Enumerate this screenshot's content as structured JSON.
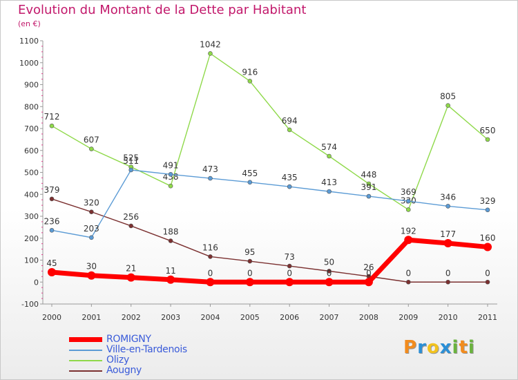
{
  "title": "Evolution du Montant de la Dette par Habitant",
  "subtitle": "(en €)",
  "chart_data": {
    "type": "line",
    "title": "Evolution du Montant de la Dette par Habitant",
    "ylabel": "(en €)",
    "xlabel": "",
    "categories": [
      "2000",
      "2001",
      "2002",
      "2003",
      "2004",
      "2005",
      "2006",
      "2007",
      "2008",
      "2009",
      "2010",
      "2011"
    ],
    "ylim": [
      -100,
      1100
    ],
    "yticks": [
      "-100",
      "0",
      "100",
      "200",
      "300",
      "400",
      "500",
      "600",
      "700",
      "800",
      "900",
      "1000",
      "1100"
    ],
    "grid": false,
    "legend_position": "bottom-left",
    "series": [
      {
        "name": "ROMIGNY",
        "color": "#ff0000",
        "values": [
          45,
          30,
          21,
          11,
          0,
          0,
          0,
          0,
          0,
          192,
          177,
          160
        ],
        "labels": [
          "45",
          "30",
          "21",
          "11",
          "0",
          "0",
          "0",
          "0",
          "0",
          "192",
          "177",
          "160"
        ]
      },
      {
        "name": "Ville-en-Tardenois",
        "color": "#5b9bd5",
        "values": [
          236,
          203,
          511,
          491,
          473,
          455,
          435,
          413,
          391,
          369,
          346,
          329
        ],
        "labels": [
          "236",
          "203",
          "511",
          "491",
          "473",
          "455",
          "435",
          "413",
          "391",
          "369",
          "346",
          "329"
        ]
      },
      {
        "name": "Olizy",
        "color": "#8fd94a",
        "values": [
          712,
          607,
          525,
          438,
          1042,
          916,
          694,
          574,
          448,
          330,
          805,
          650
        ],
        "labels": [
          "712",
          "607",
          "525",
          "438",
          "1042",
          "916",
          "694",
          "574",
          "448",
          "330",
          "805",
          "650"
        ]
      },
      {
        "name": "Aougny",
        "color": "#7b3030",
        "values": [
          379,
          320,
          256,
          188,
          116,
          95,
          73,
          50,
          26,
          0,
          0,
          0
        ],
        "labels": [
          "379",
          "320",
          "256",
          "188",
          "116",
          "95",
          "73",
          "50",
          "26",
          "0",
          "0",
          "0"
        ]
      }
    ]
  },
  "logo": {
    "letters": [
      "P",
      "r",
      "o",
      "x",
      "i",
      "t",
      "i"
    ],
    "colors": [
      "#f28c1e",
      "#2b8fd6",
      "#f2c21e",
      "#2b8fd6",
      "#6ab33e",
      "#f28c1e",
      "#6ab33e"
    ]
  }
}
